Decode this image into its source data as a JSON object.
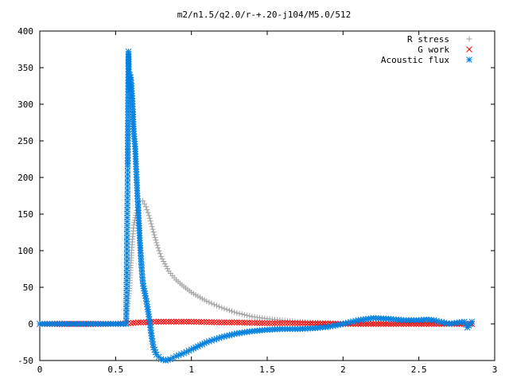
{
  "chart_data": {
    "type": "scatter",
    "title": "m2/n1.5/q2.0/r-+.20-j104/M5.0/512",
    "xlabel": "",
    "ylabel": "",
    "xlim": [
      0,
      3
    ],
    "ylim": [
      -50,
      400
    ],
    "x_ticks": [
      "0",
      "0.5",
      "1",
      "1.5",
      "2",
      "2.5",
      "3"
    ],
    "y_ticks": [
      "-50",
      "0",
      "50",
      "100",
      "150",
      "200",
      "250",
      "300",
      "350",
      "400"
    ],
    "grid": false,
    "legend_position": "top-right",
    "series": [
      {
        "name": "R stress",
        "marker": "plus",
        "color": "#a0a0a0",
        "points": [
          [
            0.0,
            0
          ],
          [
            0.1,
            0
          ],
          [
            0.2,
            0
          ],
          [
            0.3,
            0
          ],
          [
            0.4,
            0
          ],
          [
            0.5,
            0
          ],
          [
            0.55,
            0
          ],
          [
            0.57,
            0
          ],
          [
            0.58,
            28
          ],
          [
            0.59,
            45
          ],
          [
            0.595,
            63
          ],
          [
            0.6,
            80
          ],
          [
            0.605,
            97
          ],
          [
            0.61,
            112
          ],
          [
            0.615,
            123
          ],
          [
            0.62,
            135
          ],
          [
            0.63,
            145
          ],
          [
            0.64,
            155
          ],
          [
            0.65,
            163
          ],
          [
            0.66,
            168
          ],
          [
            0.68,
            168
          ],
          [
            0.7,
            160
          ],
          [
            0.72,
            148
          ],
          [
            0.74,
            133
          ],
          [
            0.76,
            118
          ],
          [
            0.78,
            104
          ],
          [
            0.8,
            92
          ],
          [
            0.85,
            72
          ],
          [
            0.9,
            60
          ],
          [
            0.95,
            51
          ],
          [
            1.0,
            43
          ],
          [
            1.1,
            31
          ],
          [
            1.2,
            22
          ],
          [
            1.3,
            15
          ],
          [
            1.4,
            10
          ],
          [
            1.5,
            7
          ],
          [
            1.6,
            5
          ],
          [
            1.7,
            3
          ],
          [
            1.8,
            2
          ],
          [
            1.9,
            1
          ],
          [
            2.0,
            0
          ],
          [
            2.2,
            0
          ],
          [
            2.4,
            0
          ],
          [
            2.6,
            0
          ],
          [
            2.8,
            0
          ],
          [
            2.85,
            0
          ]
        ]
      },
      {
        "name": "G work",
        "marker": "cross",
        "color": "#ff0000",
        "points": [
          [
            0.0,
            0
          ],
          [
            0.5,
            0
          ],
          [
            0.58,
            1
          ],
          [
            0.6,
            1
          ],
          [
            0.65,
            2
          ],
          [
            0.7,
            2
          ],
          [
            0.75,
            3
          ],
          [
            0.8,
            3
          ],
          [
            0.9,
            3
          ],
          [
            1.0,
            3
          ],
          [
            1.1,
            2.5
          ],
          [
            1.2,
            2
          ],
          [
            1.3,
            2
          ],
          [
            1.4,
            1.5
          ],
          [
            1.5,
            1
          ],
          [
            1.6,
            1
          ],
          [
            1.7,
            1
          ],
          [
            1.8,
            0.5
          ],
          [
            1.9,
            0.5
          ],
          [
            2.0,
            0
          ],
          [
            2.1,
            0
          ],
          [
            2.2,
            0
          ],
          [
            2.3,
            0
          ],
          [
            2.4,
            0
          ],
          [
            2.5,
            0
          ],
          [
            2.6,
            0
          ],
          [
            2.7,
            0
          ],
          [
            2.8,
            0
          ],
          [
            2.85,
            0
          ]
        ]
      },
      {
        "name": "Acoustic flux",
        "marker": "star",
        "color": "#0080e0",
        "points": [
          [
            0.0,
            0
          ],
          [
            0.1,
            0
          ],
          [
            0.2,
            0
          ],
          [
            0.3,
            0
          ],
          [
            0.4,
            0
          ],
          [
            0.5,
            0
          ],
          [
            0.55,
            0
          ],
          [
            0.57,
            0
          ],
          [
            0.58,
            215
          ],
          [
            0.585,
            372
          ],
          [
            0.59,
            320
          ],
          [
            0.595,
            340
          ],
          [
            0.6,
            337
          ],
          [
            0.605,
            325
          ],
          [
            0.61,
            308
          ],
          [
            0.615,
            286
          ],
          [
            0.62,
            263
          ],
          [
            0.63,
            239
          ],
          [
            0.635,
            215
          ],
          [
            0.64,
            193
          ],
          [
            0.645,
            171
          ],
          [
            0.65,
            155
          ],
          [
            0.655,
            134
          ],
          [
            0.66,
            114
          ],
          [
            0.665,
            97
          ],
          [
            0.67,
            81
          ],
          [
            0.675,
            68
          ],
          [
            0.68,
            55
          ],
          [
            0.69,
            45
          ],
          [
            0.7,
            35
          ],
          [
            0.71,
            23
          ],
          [
            0.72,
            10
          ],
          [
            0.73,
            -5
          ],
          [
            0.74,
            -20
          ],
          [
            0.75,
            -32
          ],
          [
            0.77,
            -42
          ],
          [
            0.8,
            -48
          ],
          [
            0.83,
            -50
          ],
          [
            0.86,
            -48
          ],
          [
            0.9,
            -44
          ],
          [
            0.95,
            -40
          ],
          [
            1.0,
            -35
          ],
          [
            1.1,
            -25
          ],
          [
            1.2,
            -18
          ],
          [
            1.3,
            -13
          ],
          [
            1.4,
            -10
          ],
          [
            1.5,
            -8
          ],
          [
            1.6,
            -7
          ],
          [
            1.7,
            -7
          ],
          [
            1.8,
            -6
          ],
          [
            1.9,
            -4
          ],
          [
            2.0,
            0
          ],
          [
            2.1,
            5
          ],
          [
            2.2,
            8
          ],
          [
            2.3,
            7
          ],
          [
            2.4,
            5
          ],
          [
            2.5,
            5
          ],
          [
            2.55,
            6
          ],
          [
            2.6,
            5
          ],
          [
            2.7,
            0
          ],
          [
            2.8,
            3
          ],
          [
            2.82,
            -5
          ],
          [
            2.85,
            3
          ]
        ]
      }
    ]
  }
}
